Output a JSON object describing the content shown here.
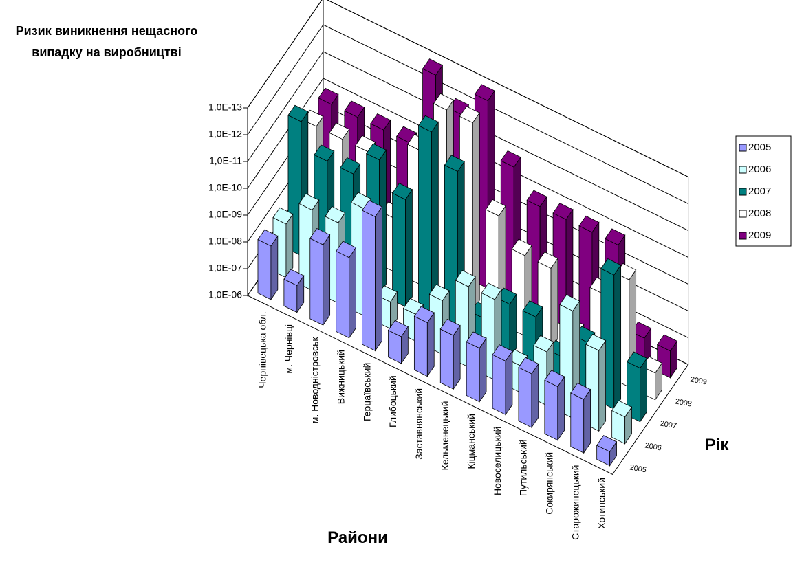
{
  "chart_data": {
    "type": "bar3d",
    "title": "Ризик виникнення нещасного випадку на виробництві",
    "x_label": "Райони",
    "z_label": "Рік",
    "log_scale": true,
    "grid": true,
    "legend": "right",
    "categories": [
      "Чернівецька обл.",
      "м. Чернівці",
      "м. Новодністровськ",
      "Вижницький",
      "Герцаївський",
      "Глибоцький",
      "Заставнянський",
      "Кельменецький",
      "Кіцманський",
      "Новоселицький",
      "Путильський",
      "Сокирянський",
      "Старожинецький",
      "Хотинський"
    ],
    "ylim": [
      1e-06,
      1e-13
    ],
    "yticks": [
      {
        "value": 1e-06,
        "label": "1,0E-06"
      },
      {
        "value": 1e-07,
        "label": "1,0E-07"
      },
      {
        "value": 1e-08,
        "label": "1,0E-08"
      },
      {
        "value": 1e-09,
        "label": "1,0E-09"
      },
      {
        "value": 1e-10,
        "label": "1,0E-10"
      },
      {
        "value": 1e-11,
        "label": "1,0E-11"
      },
      {
        "value": 1e-12,
        "label": "1,0E-12"
      },
      {
        "value": 1e-13,
        "label": "1,0E-13"
      }
    ],
    "series": [
      {
        "name": "2005",
        "color": "#9999ff",
        "values": [
          1e-08,
          1e-07,
          1e-09,
          1e-09,
          1e-11,
          1e-07,
          1e-08,
          1e-08,
          1e-08,
          1e-08,
          1e-08,
          1e-08,
          1e-08,
          3e-07
        ]
      },
      {
        "name": "2006",
        "color": "#ccffff",
        "values": [
          1e-08,
          1e-09,
          1e-09,
          1e-10,
          1e-07,
          1e-07,
          1e-08,
          1e-09,
          1e-09,
          1e-07,
          1e-08,
          1e-10,
          1e-09,
          1e-07
        ]
      },
      {
        "name": "2007",
        "color": "#008080",
        "values": [
          1e-11,
          1e-10,
          1e-10,
          1e-11,
          1e-10,
          1e-13,
          1e-12,
          1e-07,
          1e-08,
          1e-08,
          1e-07,
          1e-08,
          1e-11,
          1e-08
        ]
      },
      {
        "name": "2008",
        "color": "#ffffff",
        "values": [
          1e-10,
          1e-10,
          1e-10,
          1e-08,
          1e-11,
          1e-13,
          1e-13,
          1e-10,
          1e-09,
          1e-09,
          1e-07,
          1e-09,
          1e-10,
          1e-07
        ]
      },
      {
        "name": "2009",
        "color": "#800080",
        "values": [
          1e-10,
          1e-10,
          1e-10,
          1e-10,
          1e-13,
          1e-12,
          1e-13,
          1e-11,
          1e-10,
          1e-10,
          1e-10,
          1e-10,
          1e-07,
          1e-07
        ]
      }
    ]
  }
}
